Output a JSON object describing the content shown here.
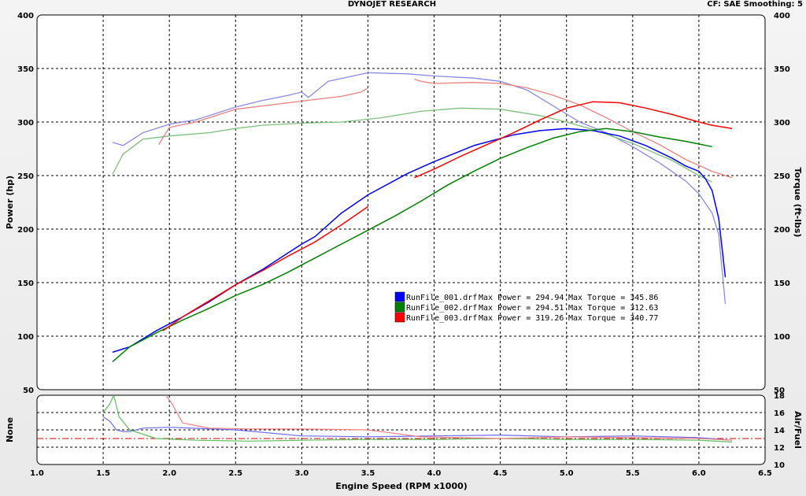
{
  "header": {
    "title": "DYNOJET RESEARCH",
    "settings": "CF: SAE  Smoothing: 5"
  },
  "chart_data": {
    "type": "line",
    "x_label": "Engine Speed (RPM x1000)",
    "x_ticks": [
      "1.0",
      "1.5",
      "2.0",
      "2.5",
      "3.0",
      "3.5",
      "4.0",
      "4.5",
      "5.0",
      "5.5",
      "6.0",
      "6.5"
    ],
    "xlim": [
      1.0,
      6.5
    ],
    "grid": true,
    "main_panel": {
      "ylabel_left": "Power (hp)",
      "ylabel_right": "Torque (ft-lbs)",
      "ylim": [
        50,
        400
      ],
      "y_ticks": [
        "50",
        "100",
        "150",
        "200",
        "250",
        "300",
        "350",
        "400"
      ]
    },
    "lower_panel": {
      "ylabel_left": "None",
      "ylabel_right": "Air/Fuel",
      "ylim": [
        10,
        18
      ],
      "y_ticks": [
        "10",
        "12",
        "14",
        "16",
        "18"
      ],
      "reference_line": 13.0
    },
    "legend": [
      {
        "color": "#0000ff",
        "file": "RunFile_001.drf",
        "max_power_label": "Max Power = 294.94",
        "max_torque_label": "Max Torque = 345.86"
      },
      {
        "color": "#008000",
        "file": "RunFile_002.drf",
        "max_power_label": "Max Power = 294.51",
        "max_torque_label": "Max Torque = 312.63"
      },
      {
        "color": "#ff0000",
        "file": "RunFile_003.drf",
        "max_power_label": "Max Power = 319.26",
        "max_torque_label": "Max Torque = 340.77"
      }
    ],
    "series": [
      {
        "run": "RunFile_001.drf",
        "quantity": "power",
        "color": "#0000ff",
        "opacity": 1.0,
        "x": [
          1.57,
          1.7,
          1.9,
          2.1,
          2.3,
          2.5,
          2.7,
          2.9,
          3.0,
          3.1,
          3.3,
          3.5,
          3.8,
          4.0,
          4.3,
          4.6,
          4.8,
          5.0,
          5.2,
          5.4,
          5.6,
          5.8,
          5.9,
          6.0,
          6.05,
          6.1,
          6.15,
          6.2
        ],
        "y": [
          85,
          90,
          105,
          118,
          132,
          148,
          162,
          178,
          186,
          193,
          215,
          232,
          252,
          263,
          278,
          288,
          292,
          294,
          292,
          287,
          278,
          266,
          259,
          254,
          247,
          236,
          210,
          155
        ]
      },
      {
        "run": "RunFile_002.drf",
        "quantity": "power",
        "color": "#008000",
        "opacity": 1.0,
        "x": [
          1.57,
          1.7,
          1.9,
          2.1,
          2.3,
          2.5,
          2.7,
          2.9,
          3.1,
          3.3,
          3.5,
          3.7,
          3.9,
          4.1,
          4.3,
          4.5,
          4.7,
          4.9,
          5.1,
          5.3,
          5.5,
          5.7,
          5.9,
          6.1
        ],
        "y": [
          76,
          90,
          103,
          115,
          126,
          138,
          148,
          160,
          173,
          186,
          199,
          212,
          226,
          241,
          254,
          266,
          276,
          285,
          291,
          294,
          291,
          286,
          282,
          277
        ]
      },
      {
        "run": "RunFile_003.drf",
        "quantity": "power",
        "color": "#ff0000",
        "opacity": 1.0,
        "x": [
          1.95,
          2.1,
          2.3,
          2.5,
          2.7,
          2.9,
          3.1,
          3.3,
          3.5
        ],
        "y": [
          105,
          118,
          133,
          148,
          161,
          175,
          188,
          204,
          221
        ]
      },
      {
        "run": "RunFile_003.drf",
        "quantity": "power",
        "color": "#ff0000",
        "opacity": 1.0,
        "x": [
          3.85,
          4.0,
          4.2,
          4.4,
          4.6,
          4.8,
          5.0,
          5.2,
          5.4,
          5.6,
          5.8,
          6.0,
          6.1,
          6.25
        ],
        "y": [
          248,
          256,
          268,
          279,
          290,
          302,
          313,
          319,
          318,
          313,
          307,
          300,
          297,
          294
        ]
      },
      {
        "run": "RunFile_001.drf",
        "quantity": "torque",
        "color": "#8a8ae6",
        "opacity": 1.0,
        "x": [
          1.57,
          1.65,
          1.8,
          2.0,
          2.2,
          2.5,
          2.7,
          2.9,
          3.0,
          3.05,
          3.2,
          3.5,
          3.8,
          4.0,
          4.3,
          4.5,
          4.7,
          4.9,
          5.1,
          5.3,
          5.5,
          5.7,
          5.9,
          6.0,
          6.1,
          6.15,
          6.2
        ],
        "y": [
          281,
          278,
          290,
          298,
          302,
          314,
          320,
          325,
          328,
          323,
          338,
          346,
          345,
          343,
          341,
          338,
          330,
          315,
          300,
          290,
          277,
          262,
          245,
          233,
          215,
          195,
          130
        ]
      },
      {
        "run": "RunFile_002.drf",
        "quantity": "torque",
        "color": "#7fbf7f",
        "opacity": 1.0,
        "x": [
          1.57,
          1.65,
          1.8,
          2.0,
          2.3,
          2.5,
          2.7,
          3.0,
          3.3,
          3.6,
          3.9,
          4.2,
          4.5,
          4.8,
          5.0,
          5.2,
          5.5,
          5.8,
          6.0,
          6.1
        ],
        "y": [
          251,
          270,
          284,
          287,
          290,
          294,
          297,
          299,
          300,
          304,
          310,
          313,
          312,
          306,
          300,
          293,
          280,
          264,
          250,
          244
        ]
      },
      {
        "run": "RunFile_003.drf",
        "quantity": "torque",
        "color": "#e88080",
        "opacity": 1.0,
        "x": [
          1.92,
          2.0,
          2.2,
          2.5,
          2.7,
          2.9,
          3.1,
          3.3,
          3.45,
          3.5
        ],
        "y": [
          279,
          295,
          300,
          312,
          315,
          318,
          321,
          324,
          328,
          332
        ]
      },
      {
        "run": "RunFile_003.drf",
        "quantity": "torque",
        "color": "#e88080",
        "opacity": 1.0,
        "x": [
          3.85,
          3.9,
          4.0,
          4.3,
          4.5,
          4.7,
          4.9,
          5.1,
          5.3,
          5.5,
          5.7,
          5.9,
          6.1,
          6.25
        ],
        "y": [
          340,
          338,
          336,
          337,
          336,
          332,
          325,
          316,
          304,
          291,
          279,
          265,
          254,
          248
        ]
      }
    ],
    "af_series": [
      {
        "run": "RunFile_001.drf",
        "color": "#6a6af0",
        "opacity": 1.0,
        "x": [
          1.5,
          1.55,
          1.6,
          1.65,
          1.7,
          1.8,
          2.0,
          2.5,
          3.0,
          3.5,
          4.0,
          4.5,
          5.0,
          5.5,
          6.0,
          6.25
        ],
        "y": [
          15.5,
          15.0,
          14.0,
          13.8,
          13.8,
          14.2,
          14.3,
          14.0,
          13.3,
          13.2,
          13.3,
          13.4,
          13.2,
          13.3,
          13.1,
          12.8
        ]
      },
      {
        "run": "RunFile_002.drf",
        "color": "#5fbf5f",
        "opacity": 1.0,
        "x": [
          1.5,
          1.55,
          1.58,
          1.62,
          1.7,
          1.9,
          2.2,
          2.6,
          3.0,
          3.5,
          4.0,
          4.5,
          5.0,
          5.5,
          6.0,
          6.25
        ],
        "y": [
          16.0,
          17.0,
          18.0,
          15.5,
          14.0,
          13.0,
          12.8,
          12.7,
          12.8,
          12.9,
          12.9,
          13.0,
          12.9,
          12.9,
          12.8,
          12.6
        ]
      },
      {
        "run": "RunFile_003.drf",
        "color": "#f08080",
        "opacity": 1.0,
        "x": [
          1.95,
          2.02,
          2.1,
          2.3,
          2.6,
          3.0,
          3.5,
          3.9,
          4.2,
          4.5,
          5.0,
          5.5,
          6.0,
          6.25
        ],
        "y": [
          18.5,
          17.0,
          14.8,
          14.2,
          14.1,
          14.1,
          14.0,
          13.2,
          13.1,
          13.0,
          13.2,
          13.1,
          13.0,
          12.8
        ]
      }
    ]
  }
}
